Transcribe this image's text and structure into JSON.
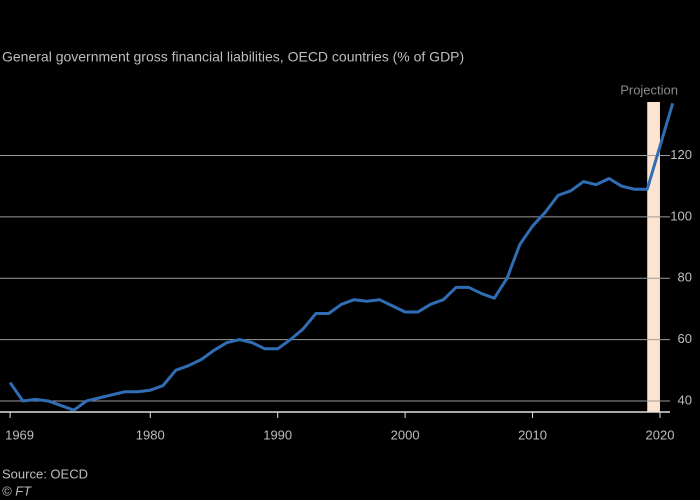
{
  "chart_data": {
    "type": "line",
    "subtitle": "General government gross financial liabilities, OECD countries (% of GDP)",
    "source": "Source: OECD",
    "credit": "© FT",
    "projection": {
      "label": "Projection",
      "xrange": [
        2019,
        2020
      ],
      "color": "#fde4d0"
    },
    "x": [
      1969,
      1970,
      1971,
      1972,
      1973,
      1974,
      1975,
      1976,
      1977,
      1978,
      1979,
      1980,
      1981,
      1982,
      1983,
      1984,
      1985,
      1986,
      1987,
      1988,
      1989,
      1990,
      1991,
      1992,
      1993,
      1994,
      1995,
      1996,
      1997,
      1998,
      1999,
      2000,
      2001,
      2002,
      2003,
      2004,
      2005,
      2006,
      2007,
      2008,
      2009,
      2010,
      2011,
      2012,
      2013,
      2014,
      2015,
      2016,
      2017,
      2018,
      2019,
      2021
    ],
    "series": [
      {
        "color": "#2f6db5",
        "values": [
          46,
          40,
          40.5,
          40,
          38.5,
          37,
          40,
          41,
          42,
          43,
          43,
          43.5,
          45,
          50,
          51.5,
          53.5,
          56.5,
          59,
          60,
          59,
          57,
          57,
          60,
          63.5,
          68.5,
          68.5,
          71.5,
          73,
          72.5,
          73,
          71,
          69,
          69,
          71.5,
          73,
          77,
          77,
          75,
          73.5,
          80,
          91,
          97,
          101.5,
          107,
          108.5,
          111.5,
          110.5,
          112.5,
          110,
          109,
          109,
          137
        ]
      }
    ],
    "xlim": [
      1968.6,
      2022.2
    ],
    "xticks": [
      1969,
      1980,
      1990,
      2000,
      2010,
      2020
    ],
    "ylim": [
      36.4,
      142
    ],
    "yticks": [
      40,
      60,
      80,
      100,
      120
    ],
    "grid": true
  }
}
